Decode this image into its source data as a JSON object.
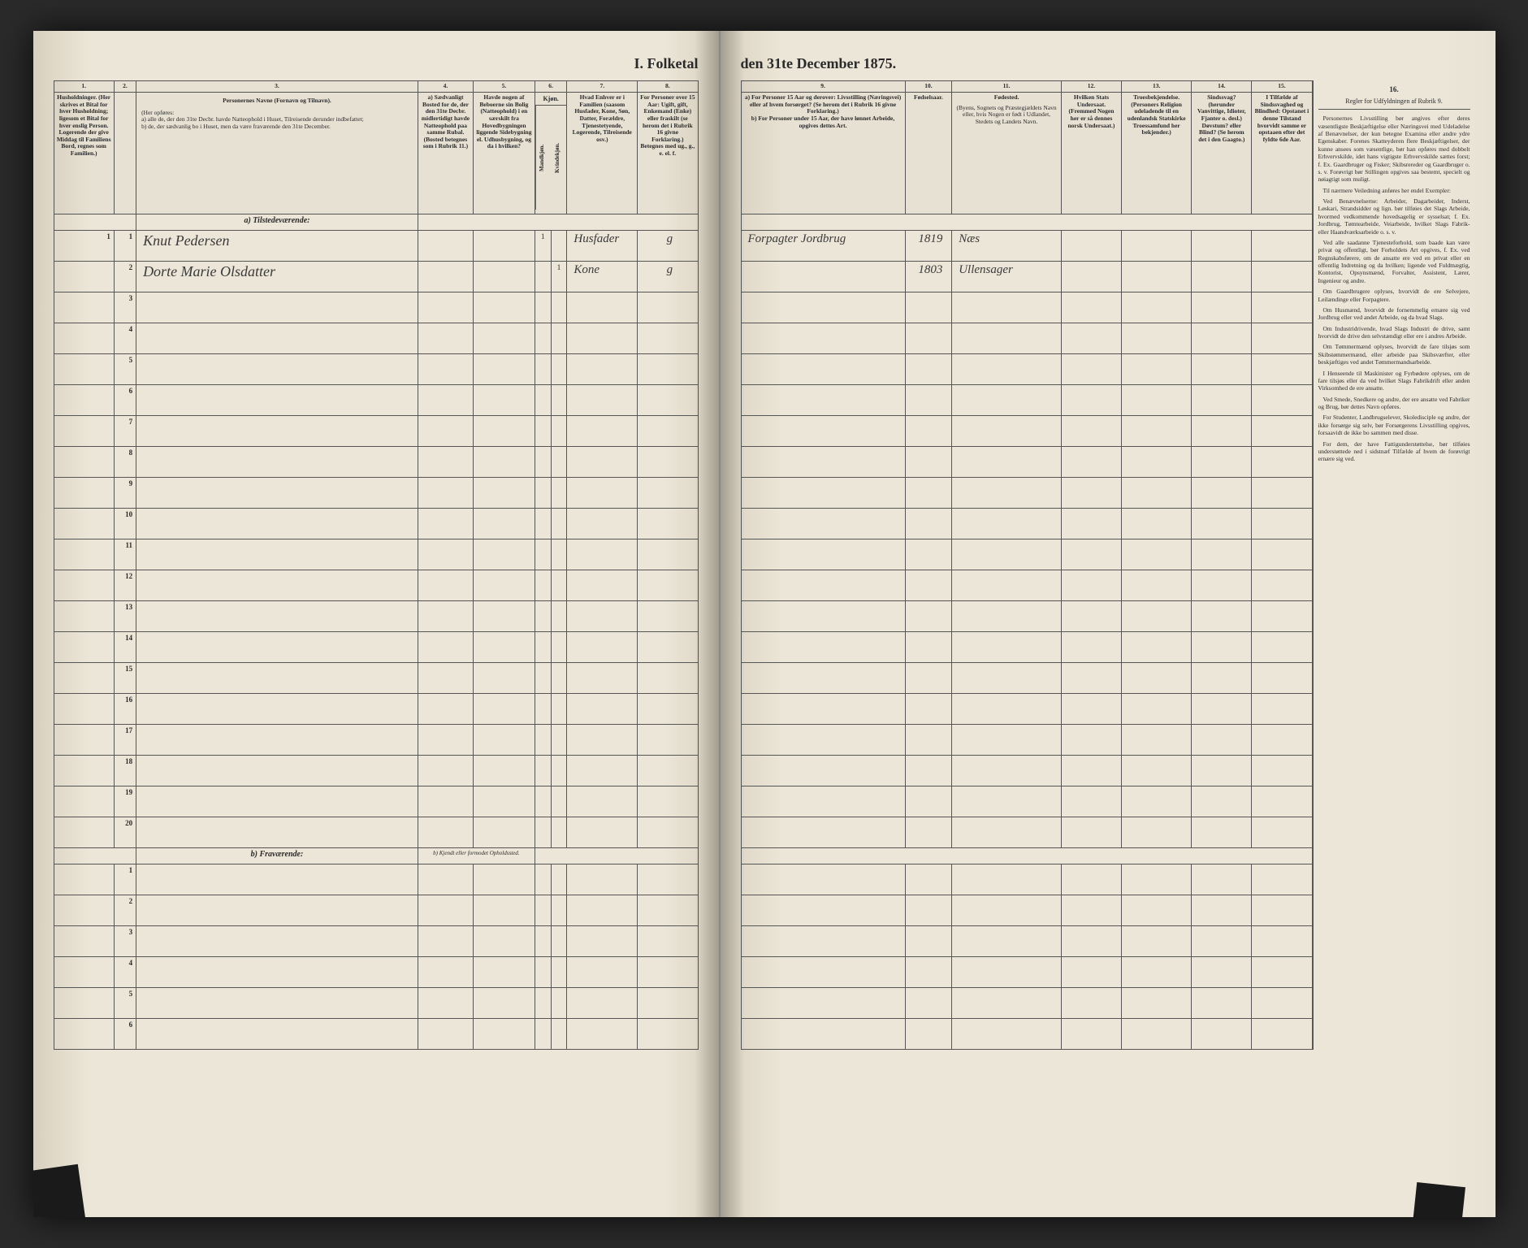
{
  "title_left": "I. Folketal",
  "title_right": "den 31te December 1875.",
  "left_cols": {
    "c1": "1.",
    "c2": "2.",
    "c3": "3.",
    "c4": "4.",
    "c5": "5.",
    "c6": "6.",
    "c7": "7.",
    "c8": "8."
  },
  "left_headers": {
    "h1": "Husholdninger. (Her skrives et Bital for hver Husholdning; ligesom et Bital for hver enslig Person. Logerende der give Middag til Familiens Bord, regnes som Familien.)",
    "h2": "",
    "h3_title": "Personernes Navne (Fornavn og Tilnavn).",
    "h3_sub": "(Her opføres:\na) alle de, der den 31te Decbr. havde Natteophold i Huset, Tilreisende derunder indbefattet;\nb) de, der sædvanlig bo i Huset, men da være fraværende den 31te December.",
    "h4": "a) Sædvanligt Bosted for de, der den 31te Decbr. midlertidigt havde Natteophold paa samme Rubal. (Bosted betegnes som i Rubrik 11.)",
    "h5": "Havde nogen af Beboerne sin Bolig (Natteophold) i en særskilt fra Hovedbygningen liggende Sidebygning el. Udhusbygning, og da i hvilken?",
    "h6_title": "Kjøn.",
    "h6a": "Mandkjøn.",
    "h6b": "Kvindekjøn.",
    "h7": "Hvad Enhver er i Familien (saasom Husfader, Kone, Søn, Datter, Forældre, Tjenestetyende, Logerende, Tilreisende osv.)",
    "h8": "For Personer over 15 Aar: Ugift, gift, Enkemand (Enke) eller fraskilt (se herom det i Rubrik 16 givne Forklaring.) Betegnes med ug., g., e. el. f."
  },
  "left_sections": {
    "a": "a) Tilstedeværende:",
    "b": "b) Fraværende:",
    "b4": "b) Kjendt eller formodet Opholdssted."
  },
  "right_cols": {
    "c9": "9.",
    "c10": "10.",
    "c11": "11.",
    "c12": "12.",
    "c13": "13.",
    "c14": "14.",
    "c15": "15.",
    "c16": "16."
  },
  "right_headers": {
    "h9": "a) For Personer 15 Aar og derover: Livsstilling (Næringsvei) eller af hvem forsørget? (Se herom det i Rubrik 16 givne Forklaring.)\nb) For Personer under 15 Aar, der have lønnet Arbeide, opgives dettes Art.",
    "h10": "Fødselsaar.",
    "h11_title": "Fødested.",
    "h11_sub": "(Byens, Sognets og Præstegjældets Navn eller, hvis Nogen er født i Udlandet, Stedets og Landets Navn.",
    "h12": "Hvilken Stats Undersaat. (Fremmed Nogen her er så dennes norsk Undersaat.)",
    "h13": "Troesbekjendelse. (Personers Religion udeladende til en udenlandsk Statskirke Troessamfund her bekjender.)",
    "h14": "Sindssvag? (herunder Vanvittige, Idioter, Fjanter o. desl.) Døvstum? eller Blind? (Se herom det i den Gaagto.)",
    "h15": "I Tilfælde af Sindssvaghed og Blindhed: Opstanet i denne Tilstand hvorvidt samme er opstaaen efter det fyldte 6de Aar.",
    "h16": "Regler for Udfyldningen af Rubrik 9."
  },
  "instructions": {
    "heading": "",
    "p1": "Personernes Livsstilling bør angives efter deres væsentligste Beskjæftigelse eller Næringsvei med Udeladelse af Benævnelser, der kun betegne Examina eller andre ydre Egenskaber. Forenes Skatteyderen flere Beskjæftigelser, der kunne ansees som væsentlige, bør han opføres med dobbelt Erhvervskilde, idet hans vigtigste Erhvervskilde sættes forst; f. Ex. Gaardbruger og Fisker; Skibsrereder og Gaardbruger o. s. v. Forøvrigt bør Stillingen opgives saa bestemt, specielt og nøiagtigt som muligt.",
    "p2": "Til nærmere Veiledning anføres her endel Exempler:",
    "p3": "Ved Benævnelserne: Arbeider, Dagarbeider, Inderst, Løskari, Strandsidder og lign. bør tilføies det Slags Arbeide, hvormed vedkommende hovedsagelig er sysselsat; f. Ex. Jordbrug, Tømtearbeide, Veiarbeide, hvilket Slags Fabrik- eller Haandværksarbeide o. s. v.",
    "p4": "Ved alle saadanne Tjenesteforhold, som baade kan være privat og offentligt, bør Forholdets Art opgives, f. Ex. ved Regnskabsførere, om de ansatte ere ved en privat eller en offentlig Indretning og da hvilken; ligende ved Fuldmægtig, Kontorist, Opsynsmænd, Forvalter, Assistent, Lærer, Ingenieur og andre.",
    "p5": "Om Gaardbrugere oplyses, hvorvidt de ere Selvejere, Leilændinge eller Forpagtere.",
    "p6": "Om Husmænd, hvorvidt de fornemmelig ernære sig ved Jordbrug eller ved andet Arbeide, og da hvad Slags.",
    "p7": "Om Industridrivende, hvad Slags Industri de drive, samt hvorvidt de drive den selvstændigt eller ere i andres Arbeide.",
    "p8": "Om Tømmermænd oplyses, hvorvidt de fare tilsjøs som Skibstømmermænd, eller arbeide paa Skibsværfter, eller beskjæftiges ved andet Tømmermandsarbeide.",
    "p9": "I Henseende til Maskinister og Fyrbødere oplyses, om de fare tilsjøs eller da ved hvilket Slags Fabrikdrift eller anden Virksomhed de ere ansatte.",
    "p10": "Ved Smede, Snedkere og andre, der ere ansatte ved Fabriker og Brug, bør dettes Navn opføres.",
    "p11": "For Studenter, Landbrugselever, Skoledisciple og andre, der ikke forsørge sig selv, bør Forsørgerens Livsstilling opgives, forsaavidt de ikke bo sammen med disse.",
    "p12": "For dem, der have Fattigunderstøttelse, bør tilføies understøttede ned i sidstnæf Tilfælde af hvem de forøvrigt ernære sig ved."
  },
  "rows": [
    {
      "n": "1",
      "name": "Knut Pedersen",
      "kj_m": "1",
      "kj_k": "",
      "fam": "Husfader",
      "civ": "g",
      "stilling": "Forpagter Jordbrug",
      "aar": "1819",
      "sted": "Næs"
    },
    {
      "n": "2",
      "name": "Dorte Marie Olsdatter",
      "kj_m": "",
      "kj_k": "1",
      "fam": "Kone",
      "civ": "g",
      "stilling": "",
      "aar": "1803",
      "sted": "Ullensager"
    },
    {
      "n": "3"
    },
    {
      "n": "4"
    },
    {
      "n": "5"
    },
    {
      "n": "6"
    },
    {
      "n": "7"
    },
    {
      "n": "8"
    },
    {
      "n": "9"
    },
    {
      "n": "10"
    },
    {
      "n": "11"
    },
    {
      "n": "12"
    },
    {
      "n": "13"
    },
    {
      "n": "14"
    },
    {
      "n": "15"
    },
    {
      "n": "16"
    },
    {
      "n": "17"
    },
    {
      "n": "18"
    },
    {
      "n": "19"
    },
    {
      "n": "20"
    }
  ],
  "b_rows": [
    {
      "n": "1"
    },
    {
      "n": "2"
    },
    {
      "n": "3"
    },
    {
      "n": "4"
    },
    {
      "n": "5"
    },
    {
      "n": "6"
    }
  ]
}
